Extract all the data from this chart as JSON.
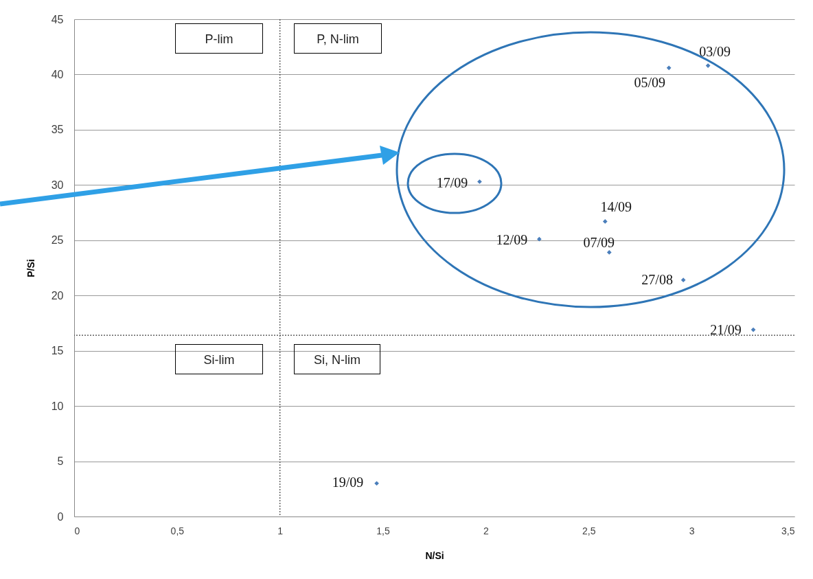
{
  "chart_data": {
    "type": "scatter",
    "xlabel": "N/Si",
    "ylabel": "P/Si",
    "x": [
      3.08,
      2.89,
      1.97,
      2.58,
      2.26,
      2.6,
      2.96,
      3.3,
      1.47
    ],
    "series": [
      {
        "color": "#4a7ebb",
        "values": [
          40.8,
          40.6,
          30.3,
          26.7,
          25.1,
          23.9,
          21.4,
          16.9,
          3.0
        ]
      }
    ],
    "xlim": [
      0,
      3.5
    ],
    "xticks": [
      0,
      {
        "value": 0.5,
        "label": "0,5"
      },
      1,
      {
        "value": 1.5,
        "label": "1,5"
      },
      2,
      {
        "value": 2.5,
        "label": "2,5"
      },
      3,
      {
        "value": 3.5,
        "label": "3,5"
      }
    ],
    "ylim": [
      0,
      45
    ],
    "yticks": [
      0,
      5,
      10,
      15,
      20,
      25,
      30,
      35,
      40,
      45
    ],
    "grid": "y",
    "marker": "diamond",
    "ref_lines": [
      {
        "axis": "x",
        "value": 1,
        "color": "#404040",
        "line_style": "dotted"
      },
      {
        "axis": "y",
        "value": 16.4,
        "color": "#404040",
        "line_style": "dotted"
      }
    ],
    "annotations": [
      "P-lim",
      "P, N-lim",
      "Si-lim",
      "Si, N-lim",
      {
        "text": "03/09",
        "x": 3.08,
        "y": 40.8
      },
      {
        "text": "05/09",
        "x": 2.89,
        "y": 40.6
      },
      {
        "text": "17/09",
        "x": 1.97,
        "y": 30.3
      },
      {
        "text": "14/09",
        "x": 2.58,
        "y": 26.7
      },
      {
        "text": "12/09",
        "x": 2.26,
        "y": 25.1
      },
      {
        "text": "07/09",
        "x": 2.6,
        "y": 23.9
      },
      {
        "text": "27/08",
        "x": 2.96,
        "y": 21.4
      },
      {
        "text": "21/09",
        "x": 3.3,
        "y": 16.9
      },
      {
        "text": "19/09",
        "x": 1.47,
        "y": 3.0
      }
    ]
  }
}
